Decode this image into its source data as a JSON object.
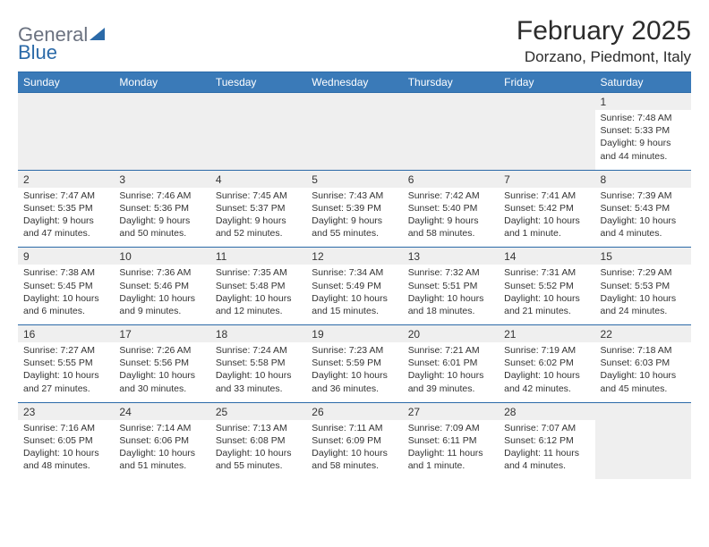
{
  "logo": {
    "part1": "General",
    "part2": "Blue",
    "shape_color": "#2b6aa8",
    "text1_color": "#6b7280",
    "text2_color": "#2b6aa8"
  },
  "title": "February 2025",
  "location": "Dorzano, Piedmont, Italy",
  "colors": {
    "header_bg": "#3a7ab8",
    "header_text": "#ffffff",
    "num_bg": "#efefef",
    "divider": "#2b6aa8",
    "body_text": "#333333"
  },
  "day_names": [
    "Sunday",
    "Monday",
    "Tuesday",
    "Wednesday",
    "Thursday",
    "Friday",
    "Saturday"
  ],
  "weeks": [
    {
      "nums": [
        "",
        "",
        "",
        "",
        "",
        "",
        "1"
      ],
      "sunrise": [
        "",
        "",
        "",
        "",
        "",
        "",
        "Sunrise: 7:48 AM"
      ],
      "sunset": [
        "",
        "",
        "",
        "",
        "",
        "",
        "Sunset: 5:33 PM"
      ],
      "day1": [
        "",
        "",
        "",
        "",
        "",
        "",
        "Daylight: 9 hours"
      ],
      "day2": [
        "",
        "",
        "",
        "",
        "",
        "",
        "and 44 minutes."
      ]
    },
    {
      "nums": [
        "2",
        "3",
        "4",
        "5",
        "6",
        "7",
        "8"
      ],
      "sunrise": [
        "Sunrise: 7:47 AM",
        "Sunrise: 7:46 AM",
        "Sunrise: 7:45 AM",
        "Sunrise: 7:43 AM",
        "Sunrise: 7:42 AM",
        "Sunrise: 7:41 AM",
        "Sunrise: 7:39 AM"
      ],
      "sunset": [
        "Sunset: 5:35 PM",
        "Sunset: 5:36 PM",
        "Sunset: 5:37 PM",
        "Sunset: 5:39 PM",
        "Sunset: 5:40 PM",
        "Sunset: 5:42 PM",
        "Sunset: 5:43 PM"
      ],
      "day1": [
        "Daylight: 9 hours",
        "Daylight: 9 hours",
        "Daylight: 9 hours",
        "Daylight: 9 hours",
        "Daylight: 9 hours",
        "Daylight: 10 hours",
        "Daylight: 10 hours"
      ],
      "day2": [
        "and 47 minutes.",
        "and 50 minutes.",
        "and 52 minutes.",
        "and 55 minutes.",
        "and 58 minutes.",
        "and 1 minute.",
        "and 4 minutes."
      ]
    },
    {
      "nums": [
        "9",
        "10",
        "11",
        "12",
        "13",
        "14",
        "15"
      ],
      "sunrise": [
        "Sunrise: 7:38 AM",
        "Sunrise: 7:36 AM",
        "Sunrise: 7:35 AM",
        "Sunrise: 7:34 AM",
        "Sunrise: 7:32 AM",
        "Sunrise: 7:31 AM",
        "Sunrise: 7:29 AM"
      ],
      "sunset": [
        "Sunset: 5:45 PM",
        "Sunset: 5:46 PM",
        "Sunset: 5:48 PM",
        "Sunset: 5:49 PM",
        "Sunset: 5:51 PM",
        "Sunset: 5:52 PM",
        "Sunset: 5:53 PM"
      ],
      "day1": [
        "Daylight: 10 hours",
        "Daylight: 10 hours",
        "Daylight: 10 hours",
        "Daylight: 10 hours",
        "Daylight: 10 hours",
        "Daylight: 10 hours",
        "Daylight: 10 hours"
      ],
      "day2": [
        "and 6 minutes.",
        "and 9 minutes.",
        "and 12 minutes.",
        "and 15 minutes.",
        "and 18 minutes.",
        "and 21 minutes.",
        "and 24 minutes."
      ]
    },
    {
      "nums": [
        "16",
        "17",
        "18",
        "19",
        "20",
        "21",
        "22"
      ],
      "sunrise": [
        "Sunrise: 7:27 AM",
        "Sunrise: 7:26 AM",
        "Sunrise: 7:24 AM",
        "Sunrise: 7:23 AM",
        "Sunrise: 7:21 AM",
        "Sunrise: 7:19 AM",
        "Sunrise: 7:18 AM"
      ],
      "sunset": [
        "Sunset: 5:55 PM",
        "Sunset: 5:56 PM",
        "Sunset: 5:58 PM",
        "Sunset: 5:59 PM",
        "Sunset: 6:01 PM",
        "Sunset: 6:02 PM",
        "Sunset: 6:03 PM"
      ],
      "day1": [
        "Daylight: 10 hours",
        "Daylight: 10 hours",
        "Daylight: 10 hours",
        "Daylight: 10 hours",
        "Daylight: 10 hours",
        "Daylight: 10 hours",
        "Daylight: 10 hours"
      ],
      "day2": [
        "and 27 minutes.",
        "and 30 minutes.",
        "and 33 minutes.",
        "and 36 minutes.",
        "and 39 minutes.",
        "and 42 minutes.",
        "and 45 minutes."
      ]
    },
    {
      "nums": [
        "23",
        "24",
        "25",
        "26",
        "27",
        "28",
        ""
      ],
      "sunrise": [
        "Sunrise: 7:16 AM",
        "Sunrise: 7:14 AM",
        "Sunrise: 7:13 AM",
        "Sunrise: 7:11 AM",
        "Sunrise: 7:09 AM",
        "Sunrise: 7:07 AM",
        ""
      ],
      "sunset": [
        "Sunset: 6:05 PM",
        "Sunset: 6:06 PM",
        "Sunset: 6:08 PM",
        "Sunset: 6:09 PM",
        "Sunset: 6:11 PM",
        "Sunset: 6:12 PM",
        ""
      ],
      "day1": [
        "Daylight: 10 hours",
        "Daylight: 10 hours",
        "Daylight: 10 hours",
        "Daylight: 10 hours",
        "Daylight: 11 hours",
        "Daylight: 11 hours",
        ""
      ],
      "day2": [
        "and 48 minutes.",
        "and 51 minutes.",
        "and 55 minutes.",
        "and 58 minutes.",
        "and 1 minute.",
        "and 4 minutes.",
        ""
      ]
    }
  ]
}
